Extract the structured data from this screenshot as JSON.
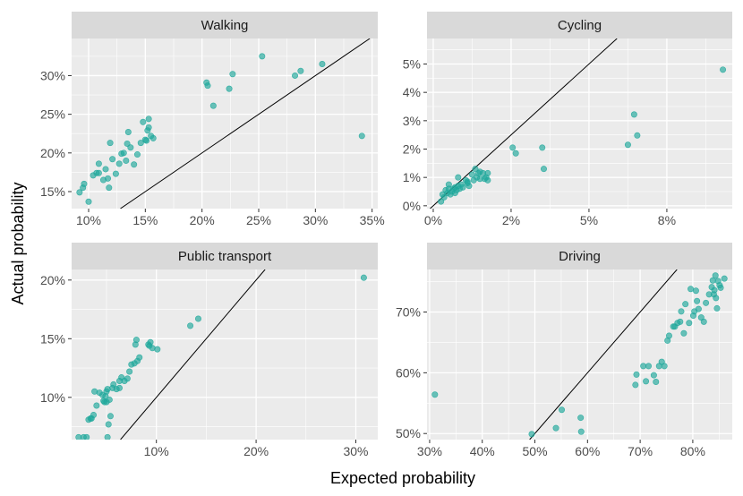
{
  "figure": {
    "xlabel": "Expected probability",
    "ylabel": "Actual probability"
  },
  "colors": {
    "panel_bg": "#ebebeb",
    "strip_bg": "#d9d9d9",
    "grid_major": "#ffffff",
    "point": "#1fa89b",
    "line": "#000000"
  },
  "chart_data": [
    {
      "type": "scatter",
      "title": "Walking",
      "xlim": [
        0.085,
        0.355
      ],
      "ylim": [
        0.128,
        0.348
      ],
      "xticks": [
        0.1,
        0.15,
        0.2,
        0.25,
        0.3,
        0.35
      ],
      "xtick_labels": [
        "10%",
        "15%",
        "20%",
        "25%",
        "30%",
        "35%"
      ],
      "yticks": [
        0.15,
        0.2,
        0.25,
        0.3
      ],
      "ytick_labels": [
        "15%",
        "20%",
        "25%",
        "30%"
      ],
      "reference_line": "y = x",
      "points": [
        [
          0.092,
          0.149
        ],
        [
          0.095,
          0.155
        ],
        [
          0.096,
          0.16
        ],
        [
          0.1,
          0.137
        ],
        [
          0.104,
          0.171
        ],
        [
          0.107,
          0.174
        ],
        [
          0.109,
          0.186
        ],
        [
          0.109,
          0.174
        ],
        [
          0.113,
          0.165
        ],
        [
          0.115,
          0.179
        ],
        [
          0.117,
          0.167
        ],
        [
          0.118,
          0.155
        ],
        [
          0.119,
          0.213
        ],
        [
          0.121,
          0.192
        ],
        [
          0.124,
          0.173
        ],
        [
          0.127,
          0.186
        ],
        [
          0.129,
          0.199
        ],
        [
          0.131,
          0.2
        ],
        [
          0.133,
          0.19
        ],
        [
          0.134,
          0.212
        ],
        [
          0.135,
          0.227
        ],
        [
          0.137,
          0.207
        ],
        [
          0.14,
          0.185
        ],
        [
          0.143,
          0.198
        ],
        [
          0.146,
          0.213
        ],
        [
          0.148,
          0.24
        ],
        [
          0.15,
          0.217
        ],
        [
          0.151,
          0.216
        ],
        [
          0.152,
          0.229
        ],
        [
          0.153,
          0.233
        ],
        [
          0.153,
          0.244
        ],
        [
          0.155,
          0.222
        ],
        [
          0.157,
          0.219
        ],
        [
          0.204,
          0.291
        ],
        [
          0.205,
          0.287
        ],
        [
          0.21,
          0.261
        ],
        [
          0.224,
          0.283
        ],
        [
          0.227,
          0.302
        ],
        [
          0.253,
          0.325
        ],
        [
          0.282,
          0.3
        ],
        [
          0.287,
          0.306
        ],
        [
          0.306,
          0.315
        ],
        [
          0.341,
          0.222
        ]
      ]
    },
    {
      "type": "scatter",
      "title": "Cycling",
      "xlim": [
        -0.002,
        0.096
      ],
      "ylim": [
        -0.001,
        0.059
      ],
      "xticks": [
        0.0,
        0.025,
        0.05,
        0.075
      ],
      "xtick_labels": [
        "0%",
        "2%",
        "5%",
        "8%"
      ],
      "yticks": [
        0.0,
        0.01,
        0.02,
        0.03,
        0.04,
        0.05
      ],
      "ytick_labels": [
        "0%",
        "1%",
        "2%",
        "3%",
        "4%",
        "5%"
      ],
      "reference_line": "y = x",
      "points": [
        [
          0.0025,
          0.0015
        ],
        [
          0.003,
          0.004
        ],
        [
          0.0035,
          0.003
        ],
        [
          0.004,
          0.0055
        ],
        [
          0.0045,
          0.0045
        ],
        [
          0.005,
          0.006
        ],
        [
          0.005,
          0.0075
        ],
        [
          0.0055,
          0.004
        ],
        [
          0.006,
          0.005
        ],
        [
          0.0065,
          0.006
        ],
        [
          0.007,
          0.0045
        ],
        [
          0.007,
          0.0065
        ],
        [
          0.0075,
          0.0055
        ],
        [
          0.008,
          0.007
        ],
        [
          0.008,
          0.01
        ],
        [
          0.0085,
          0.006
        ],
        [
          0.009,
          0.0075
        ],
        [
          0.0095,
          0.0065
        ],
        [
          0.0105,
          0.009
        ],
        [
          0.011,
          0.008
        ],
        [
          0.011,
          0.0085
        ],
        [
          0.0115,
          0.007
        ],
        [
          0.0125,
          0.011
        ],
        [
          0.013,
          0.009
        ],
        [
          0.0135,
          0.013
        ],
        [
          0.014,
          0.01
        ],
        [
          0.0145,
          0.0115
        ],
        [
          0.015,
          0.012
        ],
        [
          0.015,
          0.0095
        ],
        [
          0.016,
          0.0115
        ],
        [
          0.0165,
          0.0095
        ],
        [
          0.017,
          0.01
        ],
        [
          0.0175,
          0.0115
        ],
        [
          0.0175,
          0.009
        ],
        [
          0.0255,
          0.0205
        ],
        [
          0.0265,
          0.0185
        ],
        [
          0.035,
          0.0205
        ],
        [
          0.0355,
          0.013
        ],
        [
          0.0625,
          0.0215
        ],
        [
          0.0645,
          0.0322
        ],
        [
          0.0655,
          0.0248
        ],
        [
          0.093,
          0.048
        ]
      ]
    },
    {
      "type": "scatter",
      "title": "Public transport",
      "xlim": [
        0.015,
        0.322
      ],
      "ylim": [
        0.064,
        0.209
      ],
      "xticks": [
        0.1,
        0.2,
        0.3
      ],
      "xtick_labels": [
        "10%",
        "20%",
        "30%"
      ],
      "yticks": [
        0.1,
        0.15,
        0.2
      ],
      "ytick_labels": [
        "10%",
        "15%",
        "20%"
      ],
      "reference_line": "y = x",
      "points": [
        [
          0.022,
          0.066
        ],
        [
          0.027,
          0.066
        ],
        [
          0.03,
          0.066
        ],
        [
          0.032,
          0.081
        ],
        [
          0.034,
          0.082
        ],
        [
          0.035,
          0.082
        ],
        [
          0.037,
          0.085
        ],
        [
          0.038,
          0.105
        ],
        [
          0.04,
          0.093
        ],
        [
          0.043,
          0.104
        ],
        [
          0.046,
          0.102
        ],
        [
          0.047,
          0.097
        ],
        [
          0.048,
          0.096
        ],
        [
          0.049,
          0.101
        ],
        [
          0.05,
          0.096
        ],
        [
          0.05,
          0.105
        ],
        [
          0.051,
          0.066
        ],
        [
          0.051,
          0.107
        ],
        [
          0.052,
          0.077
        ],
        [
          0.053,
          0.098
        ],
        [
          0.054,
          0.084
        ],
        [
          0.056,
          0.108
        ],
        [
          0.057,
          0.111
        ],
        [
          0.06,
          0.107
        ],
        [
          0.063,
          0.108
        ],
        [
          0.063,
          0.114
        ],
        [
          0.065,
          0.117
        ],
        [
          0.068,
          0.114
        ],
        [
          0.071,
          0.116
        ],
        [
          0.073,
          0.122
        ],
        [
          0.075,
          0.128
        ],
        [
          0.078,
          0.129
        ],
        [
          0.079,
          0.145
        ],
        [
          0.08,
          0.149
        ],
        [
          0.081,
          0.131
        ],
        [
          0.083,
          0.134
        ],
        [
          0.092,
          0.145
        ],
        [
          0.093,
          0.144
        ],
        [
          0.094,
          0.147
        ],
        [
          0.096,
          0.142
        ],
        [
          0.101,
          0.141
        ],
        [
          0.134,
          0.161
        ],
        [
          0.142,
          0.167
        ],
        [
          0.308,
          0.202
        ]
      ]
    },
    {
      "type": "scatter",
      "title": "Driving",
      "xlim": [
        0.295,
        0.875
      ],
      "ylim": [
        0.49,
        0.77
      ],
      "xticks": [
        0.3,
        0.4,
        0.5,
        0.6,
        0.7,
        0.8
      ],
      "xtick_labels": [
        "30%",
        "40%",
        "50%",
        "60%",
        "70%",
        "80%"
      ],
      "yticks": [
        0.5,
        0.6,
        0.7
      ],
      "ytick_labels": [
        "50%",
        "60%",
        "70%"
      ],
      "reference_line": "y = x",
      "points": [
        [
          0.31,
          0.564
        ],
        [
          0.494,
          0.499
        ],
        [
          0.54,
          0.509
        ],
        [
          0.551,
          0.539
        ],
        [
          0.587,
          0.526
        ],
        [
          0.588,
          0.503
        ],
        [
          0.691,
          0.58
        ],
        [
          0.693,
          0.597
        ],
        [
          0.706,
          0.611
        ],
        [
          0.711,
          0.586
        ],
        [
          0.716,
          0.611
        ],
        [
          0.726,
          0.596
        ],
        [
          0.73,
          0.585
        ],
        [
          0.736,
          0.611
        ],
        [
          0.741,
          0.618
        ],
        [
          0.746,
          0.611
        ],
        [
          0.752,
          0.653
        ],
        [
          0.755,
          0.661
        ],
        [
          0.763,
          0.676
        ],
        [
          0.766,
          0.676
        ],
        [
          0.771,
          0.682
        ],
        [
          0.776,
          0.684
        ],
        [
          0.778,
          0.701
        ],
        [
          0.783,
          0.665
        ],
        [
          0.786,
          0.713
        ],
        [
          0.793,
          0.682
        ],
        [
          0.796,
          0.738
        ],
        [
          0.801,
          0.694
        ],
        [
          0.803,
          0.701
        ],
        [
          0.806,
          0.735
        ],
        [
          0.808,
          0.718
        ],
        [
          0.811,
          0.705
        ],
        [
          0.816,
          0.691
        ],
        [
          0.821,
          0.684
        ],
        [
          0.825,
          0.715
        ],
        [
          0.831,
          0.729
        ],
        [
          0.836,
          0.741
        ],
        [
          0.838,
          0.752
        ],
        [
          0.84,
          0.729
        ],
        [
          0.841,
          0.736
        ],
        [
          0.843,
          0.76
        ],
        [
          0.844,
          0.723
        ],
        [
          0.846,
          0.706
        ],
        [
          0.848,
          0.751
        ],
        [
          0.851,
          0.744
        ],
        [
          0.853,
          0.74
        ],
        [
          0.86,
          0.755
        ]
      ]
    }
  ]
}
